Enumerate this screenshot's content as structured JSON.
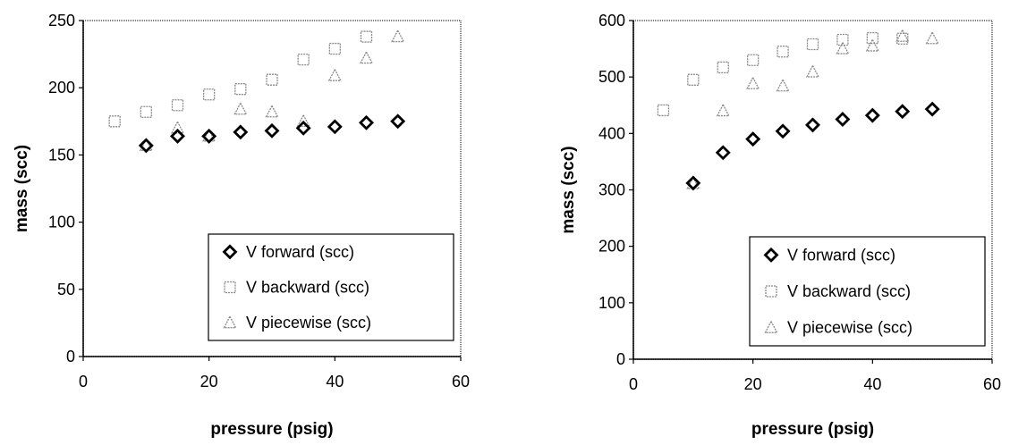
{
  "chart_data": [
    {
      "type": "scatter",
      "title": "",
      "xlabel": "pressure (psig)",
      "ylabel": "mass (scc)",
      "xlim": [
        0,
        60
      ],
      "ylim": [
        0,
        250
      ],
      "xticks": [
        "0",
        "20",
        "40",
        "60"
      ],
      "yticks": [
        "0",
        "50",
        "100",
        "150",
        "200",
        "250"
      ],
      "grid": false,
      "legend_position": "bottom-right",
      "series": [
        {
          "name": "V forward (scc)",
          "marker": "diamond-icon",
          "color": "#000000",
          "x": [
            10,
            15,
            20,
            25,
            30,
            35,
            40,
            45,
            50
          ],
          "y": [
            157,
            164,
            164,
            167,
            168,
            170,
            171,
            174,
            175
          ]
        },
        {
          "name": "V backward (scc)",
          "marker": "square-icon",
          "color": "#8a8a8a",
          "x": [
            5,
            10,
            15,
            20,
            25,
            30,
            35,
            40,
            45
          ],
          "y": [
            175,
            182,
            187,
            195,
            199,
            206,
            221,
            229,
            238
          ]
        },
        {
          "name": "V piecewise (scc)",
          "marker": "triangle-icon",
          "color": "#8a8a8a",
          "x": [
            10,
            15,
            20,
            25,
            30,
            35,
            40,
            45,
            50
          ],
          "y": [
            157,
            170,
            164,
            184,
            182,
            175,
            209,
            222,
            238
          ]
        }
      ]
    },
    {
      "type": "scatter",
      "title": "",
      "xlabel": "pressure (psig)",
      "ylabel": "mass (scc)",
      "xlim": [
        0,
        60
      ],
      "ylim": [
        0,
        600
      ],
      "xticks": [
        "0",
        "20",
        "40",
        "60"
      ],
      "yticks": [
        "0",
        "100",
        "200",
        "300",
        "400",
        "500",
        "600"
      ],
      "grid": false,
      "legend_position": "bottom-right",
      "series": [
        {
          "name": "V forward (scc)",
          "marker": "diamond-icon",
          "color": "#000000",
          "x": [
            10,
            15,
            20,
            25,
            30,
            35,
            40,
            45,
            50
          ],
          "y": [
            312,
            366,
            390,
            404,
            415,
            425,
            432,
            439,
            443
          ]
        },
        {
          "name": "V backward (scc)",
          "marker": "square-icon",
          "color": "#8a8a8a",
          "x": [
            5,
            10,
            15,
            20,
            25,
            30,
            35,
            40,
            45
          ],
          "y": [
            441,
            495,
            517,
            530,
            545,
            558,
            566,
            569,
            568
          ]
        },
        {
          "name": "V piecewise (scc)",
          "marker": "triangle-icon",
          "color": "#8a8a8a",
          "x": [
            10,
            15,
            20,
            25,
            30,
            35,
            40,
            45,
            50
          ],
          "y": [
            311,
            440,
            488,
            484,
            509,
            550,
            555,
            572,
            568
          ]
        }
      ]
    }
  ]
}
